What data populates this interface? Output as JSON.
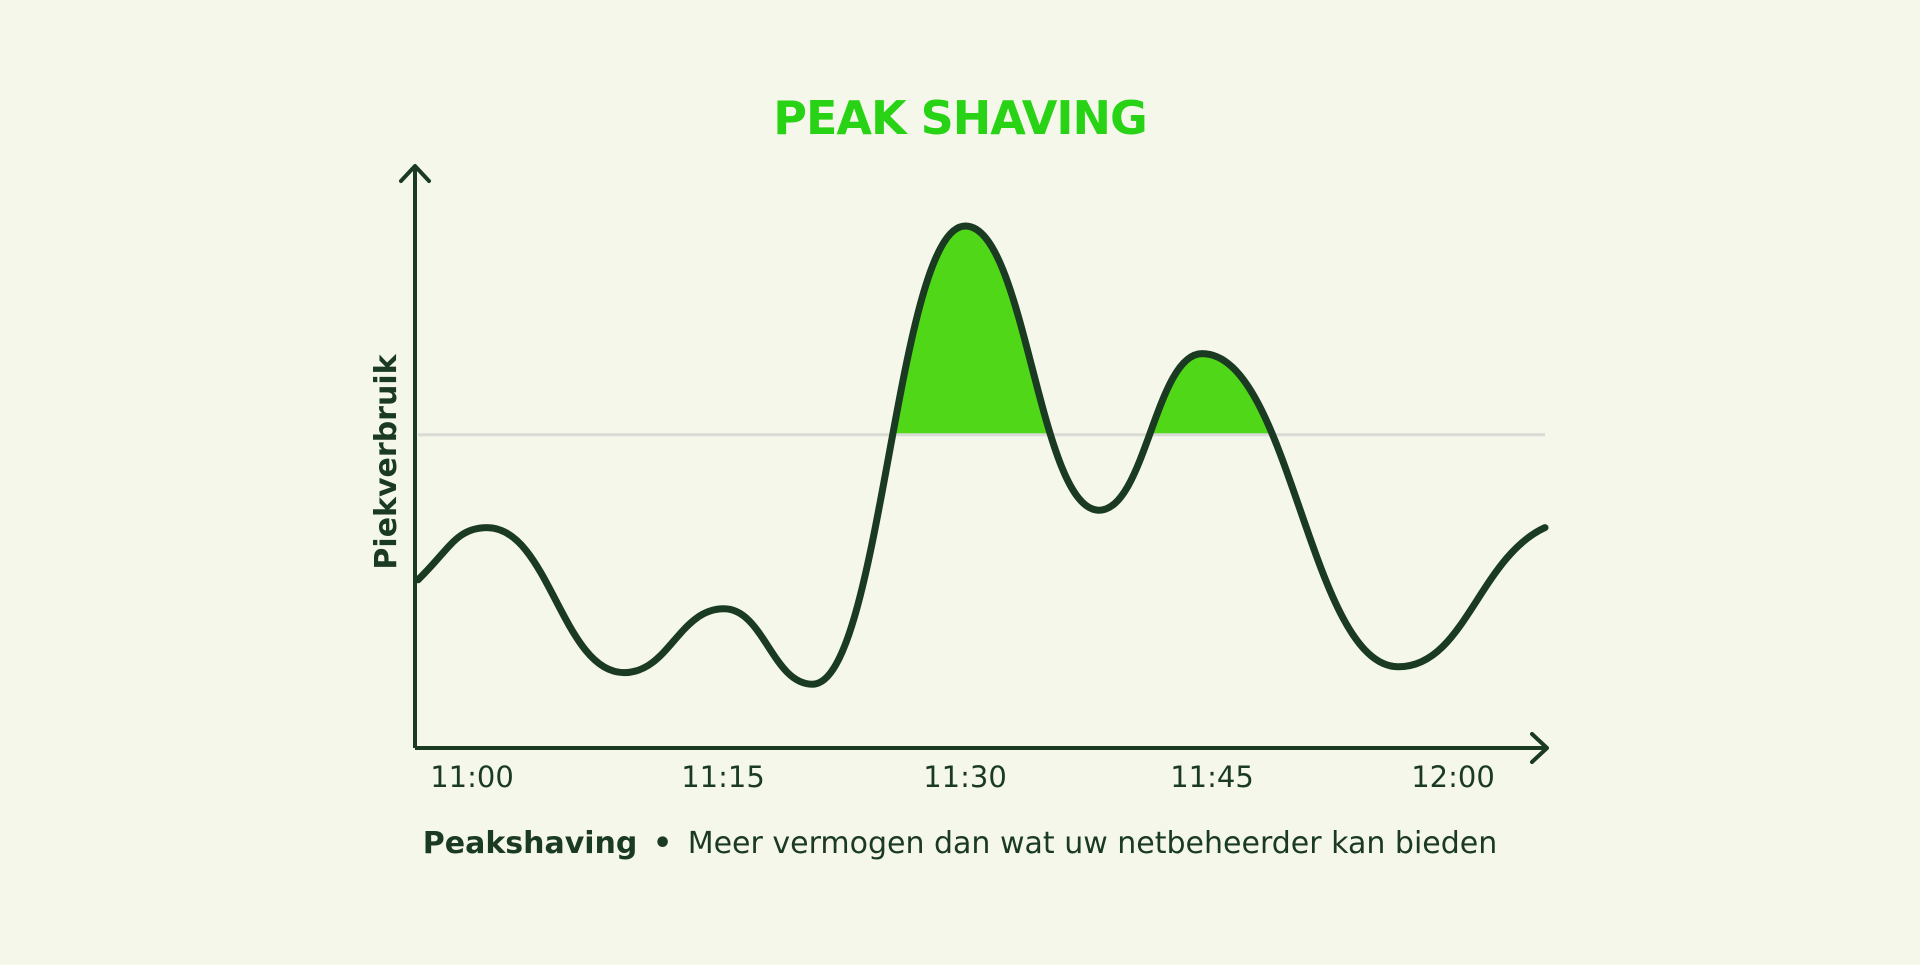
{
  "chart_data": {
    "type": "line",
    "title": "PEAK SHAVING",
    "ylabel": "Piekverbruik",
    "xlabel": "",
    "x_ticks": [
      "11:00",
      "11:15",
      "11:30",
      "11:45",
      "12:00"
    ],
    "x_range_minutes": [
      0,
      70
    ],
    "y_range": [
      0,
      1
    ],
    "grid": false,
    "threshold": 0.54,
    "series": [
      {
        "values": [
          [
            0.0,
            0.29
          ],
          [
            4.3,
            0.38
          ],
          [
            12.8,
            0.13
          ],
          [
            19.0,
            0.24
          ],
          [
            24.5,
            0.11
          ],
          [
            34.0,
            0.9
          ],
          [
            42.3,
            0.41
          ],
          [
            48.7,
            0.68
          ],
          [
            60.9,
            0.14
          ],
          [
            70.0,
            0.38
          ]
        ]
      }
    ],
    "caption": {
      "bold": "Peakshaving",
      "separator": "•",
      "text": "Meer vermogen dan wat uw netbeheerder kan bieden"
    },
    "colors": {
      "background": "#f5f7eb",
      "title": "#28d214",
      "line": "#1a3a22",
      "fill": "#4fd718",
      "threshold": "#d9dcd4",
      "axis": "#1a3a22"
    }
  }
}
